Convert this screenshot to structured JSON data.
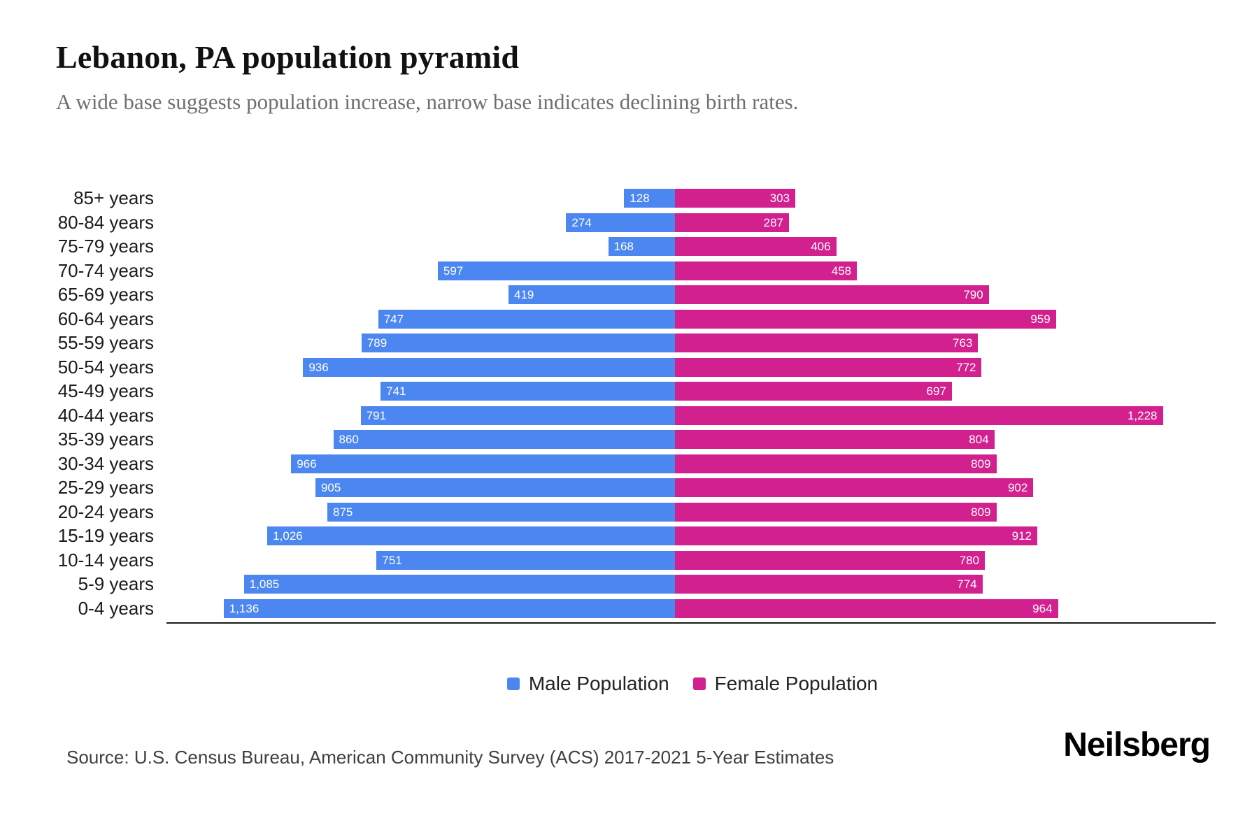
{
  "header": {
    "title": "Lebanon, PA population pyramid",
    "subtitle": "A wide base suggests population increase, narrow base indicates declining birth rates."
  },
  "chart_data": {
    "type": "bar",
    "variant": "population-pyramid",
    "categories": [
      "85+ years",
      "80-84 years",
      "75-79 years",
      "70-74 years",
      "65-69 years",
      "60-64 years",
      "55-59 years",
      "50-54 years",
      "45-49 years",
      "40-44 years",
      "35-39 years",
      "30-34 years",
      "25-29 years",
      "20-24 years",
      "15-19 years",
      "10-14 years",
      "5-9 years",
      "0-4 years"
    ],
    "series": [
      {
        "name": "Male Population",
        "color": "#4c86f0",
        "values": [
          128,
          274,
          168,
          597,
          419,
          747,
          789,
          936,
          741,
          791,
          860,
          966,
          905,
          875,
          1026,
          751,
          1085,
          1136
        ]
      },
      {
        "name": "Female Population",
        "color": "#d2208e",
        "values": [
          303,
          287,
          406,
          458,
          790,
          959,
          763,
          772,
          697,
          1228,
          804,
          809,
          902,
          809,
          912,
          780,
          774,
          964
        ]
      }
    ],
    "value_axis": {
      "per_side_max": 1270,
      "gridlines": false
    },
    "legend_position": "bottom-center",
    "bar_value_labels": "inside-outer-end, white text, thousands separated with commas"
  },
  "footer": {
    "source": "Source: U.S. Census Bureau, American Community Survey (ACS) 2017-2021 5-Year Estimates",
    "logo": "Neilsberg"
  }
}
